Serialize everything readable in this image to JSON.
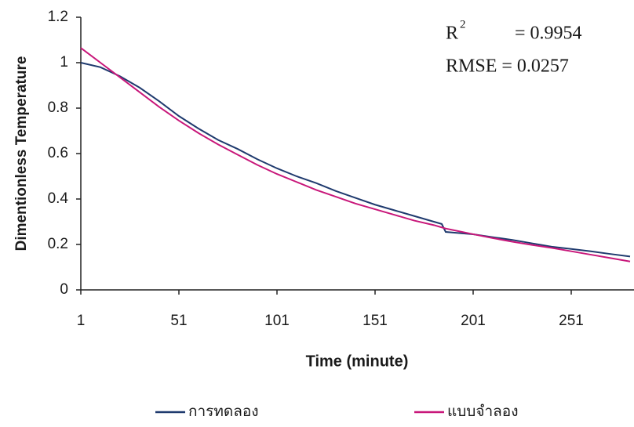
{
  "chart_data": {
    "type": "line",
    "x_label": "Time (minute)",
    "y_label": "Dimentionless Temperature",
    "annotations": [
      "R",
      "2",
      "= 0.9954",
      "RMSE = 0.0257"
    ],
    "x": [
      1,
      11,
      21,
      31,
      41,
      51,
      61,
      71,
      81,
      91,
      101,
      111,
      121,
      131,
      141,
      151,
      161,
      171,
      181,
      185,
      187,
      191,
      201,
      211,
      221,
      231,
      241,
      251,
      261,
      271,
      281
    ],
    "series": [
      {
        "name": "การทดลอง",
        "color": "#1f3a6e",
        "values": [
          1.0,
          0.98,
          0.94,
          0.89,
          0.83,
          0.765,
          0.71,
          0.66,
          0.62,
          0.575,
          0.535,
          0.5,
          0.47,
          0.435,
          0.405,
          0.375,
          0.35,
          0.325,
          0.3,
          0.29,
          0.255,
          0.252,
          0.245,
          0.232,
          0.22,
          0.205,
          0.19,
          0.18,
          0.17,
          0.158,
          0.147
        ]
      },
      {
        "name": "แบบจำลอง",
        "color": "#c8177a",
        "values": [
          1.065,
          1.0,
          0.935,
          0.87,
          0.805,
          0.745,
          0.69,
          0.64,
          0.595,
          0.55,
          0.51,
          0.475,
          0.44,
          0.41,
          0.38,
          0.355,
          0.33,
          0.305,
          0.285,
          0.275,
          0.27,
          0.263,
          0.245,
          0.228,
          0.212,
          0.198,
          0.185,
          0.17,
          0.155,
          0.14,
          0.125
        ]
      }
    ],
    "xlim": [
      1,
      283
    ],
    "xticks": [
      1,
      51,
      101,
      151,
      201,
      251
    ],
    "ylim": [
      0,
      1.2
    ],
    "yticks": [
      0,
      0.2,
      0.4,
      0.6,
      0.8,
      1,
      1.2
    ],
    "grid": false
  }
}
